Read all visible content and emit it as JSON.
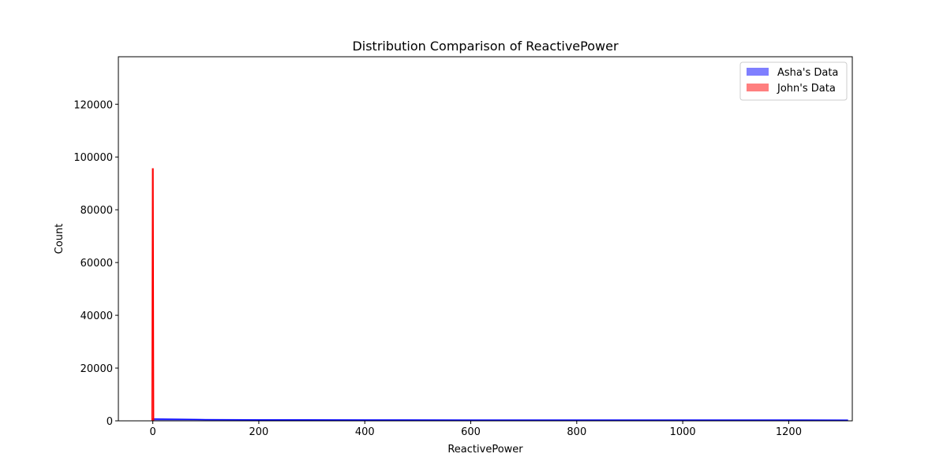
{
  "chart_data": {
    "type": "area",
    "title": "Distribution Comparison of ReactivePower",
    "xlabel": "ReactivePower",
    "ylabel": "Count",
    "xlim": [
      -65,
      1320
    ],
    "ylim": [
      0,
      138000
    ],
    "x_ticks": [
      0,
      200,
      400,
      600,
      800,
      1000,
      1200
    ],
    "y_ticks": [
      0,
      20000,
      40000,
      60000,
      80000,
      100000,
      120000
    ],
    "grid": false,
    "legend_position": "top-right",
    "series": [
      {
        "name": "Asha's Data",
        "color": "#0000ff",
        "fill_opacity": 0.5,
        "points": [
          [
            0,
            700
          ],
          [
            50,
            600
          ],
          [
            100,
            450
          ],
          [
            200,
            380
          ],
          [
            400,
            330
          ],
          [
            600,
            310
          ],
          [
            800,
            300
          ],
          [
            1000,
            290
          ],
          [
            1200,
            285
          ],
          [
            1312,
            280
          ]
        ]
      },
      {
        "name": "John's Data",
        "color": "#ff0000",
        "fill_opacity": 0.5,
        "points": [
          [
            -1.5,
            0
          ],
          [
            -0.5,
            95500
          ],
          [
            0.5,
            95500
          ],
          [
            1.5,
            0
          ]
        ]
      }
    ]
  }
}
